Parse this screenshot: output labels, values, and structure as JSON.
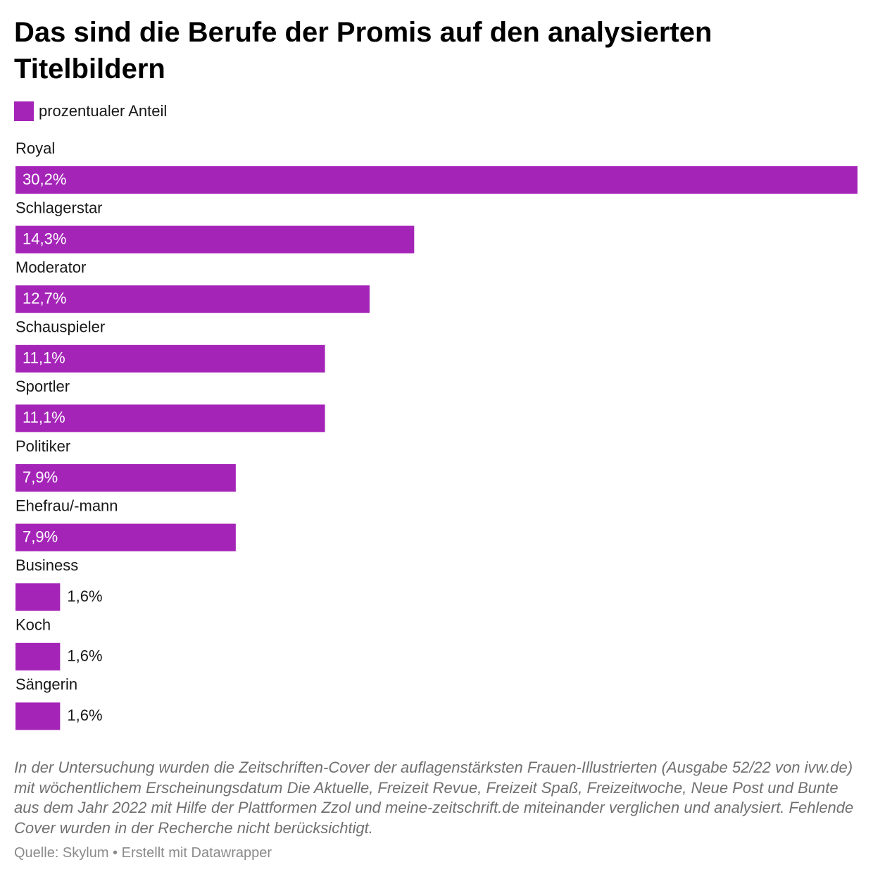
{
  "chart_data": {
    "type": "bar",
    "orientation": "horizontal",
    "title": "Das sind die Berufe der Promis auf den analysierten Titelbildern",
    "categories": [
      "Royal",
      "Schlagerstar",
      "Moderator",
      "Schauspieler",
      "Sportler",
      "Politiker",
      "Ehefrau/-mann",
      "Business",
      "Koch",
      "Sängerin"
    ],
    "series": [
      {
        "name": "prozentualer Anteil",
        "color": "#a524b8",
        "values": [
          30.2,
          14.3,
          12.7,
          11.1,
          11.1,
          7.9,
          7.9,
          1.6,
          1.6,
          1.6
        ],
        "value_labels": [
          "30,2%",
          "14,3%",
          "12,7%",
          "11,1%",
          "11,1%",
          "7,9%",
          "7,9%",
          "1,6%",
          "1,6%",
          "1,6%"
        ]
      }
    ],
    "xlim": [
      0,
      30.2
    ],
    "notes": "In der Untersuchung wurden die Zeitschriften-Cover der auflagenstärksten Frauen-Illustrierten (Ausgabe 52/22 von ivw.de) mit wöchentlichem Erscheinungsdatum Die Aktuelle, Freizeit Revue, Freizeit Spaß, Freizeitwoche, Neue Post und Bunte aus dem Jahr 2022 mit Hilfe der Plattformen Zzol und meine-zeitschrift.de miteinander verglichen und analysiert. Fehlende Cover wurden in der Recherche nicht berücksichtigt.",
    "source": "Quelle: Skylum • Erstellt mit Datawrapper"
  }
}
